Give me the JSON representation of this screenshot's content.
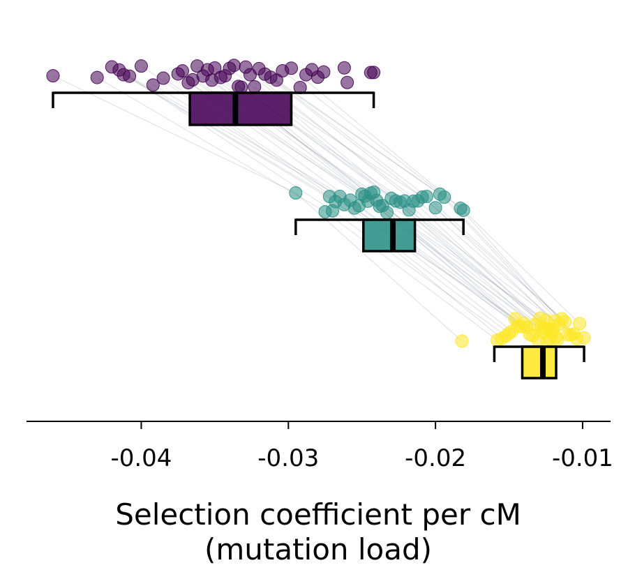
{
  "chart_data": {
    "type": "box-with-points",
    "title": "",
    "xlabel": "Selection coefficient per cM",
    "xlabel_line2": "(mutation load)",
    "xlim": [
      -0.0478,
      -0.0081
    ],
    "xticks": [
      -0.04,
      -0.03,
      -0.02,
      -0.01
    ],
    "xtick_labels": [
      "-0.04",
      "-0.03",
      "-0.02",
      "-0.01"
    ],
    "grid": false,
    "legend": "none",
    "paired_lines": true,
    "groups": [
      {
        "color": "#440154",
        "box": {
          "whisker_low": -0.046,
          "q1": -0.0367,
          "median": -0.0336,
          "q3": -0.0298,
          "whisker_high": -0.0242
        },
        "points": [
          -0.046,
          -0.043,
          -0.042,
          -0.0415,
          -0.0412,
          -0.0408,
          -0.04,
          -0.0392,
          -0.0385,
          -0.0375,
          -0.0372,
          -0.0368,
          -0.0365,
          -0.0362,
          -0.0358,
          -0.0355,
          -0.0352,
          -0.035,
          -0.0346,
          -0.0343,
          -0.034,
          -0.0337,
          -0.0334,
          -0.0332,
          -0.0329,
          -0.0326,
          -0.0323,
          -0.032,
          -0.0316,
          -0.0312,
          -0.0308,
          -0.0304,
          -0.0298,
          -0.0292,
          -0.0288,
          -0.0284,
          -0.028,
          -0.0276,
          -0.0262,
          -0.026,
          -0.0244,
          -0.0242
        ]
      },
      {
        "color": "#2a9085",
        "box": {
          "whisker_low": -0.0295,
          "q1": -0.0249,
          "median": -0.0229,
          "q3": -0.0214,
          "whisker_high": -0.0181
        },
        "points": [
          -0.0295,
          -0.0275,
          -0.0272,
          -0.027,
          -0.0268,
          -0.0265,
          -0.0262,
          -0.0258,
          -0.0255,
          -0.0252,
          -0.025,
          -0.0248,
          -0.0246,
          -0.0244,
          -0.0242,
          -0.024,
          -0.0238,
          -0.0236,
          -0.0233,
          -0.023,
          -0.0227,
          -0.0224,
          -0.0221,
          -0.0218,
          -0.0215,
          -0.0212,
          -0.0209,
          -0.0206,
          -0.02,
          -0.0197,
          -0.0194,
          -0.0183,
          -0.0181
        ]
      },
      {
        "color": "#fde725",
        "box": {
          "whisker_low": -0.016,
          "q1": -0.0141,
          "median": -0.0127,
          "q3": -0.0118,
          "whisker_high": -0.0099
        },
        "points": [
          -0.0182,
          -0.0158,
          -0.0155,
          -0.0152,
          -0.015,
          -0.0148,
          -0.0146,
          -0.0144,
          -0.0142,
          -0.014,
          -0.0138,
          -0.0136,
          -0.0134,
          -0.0132,
          -0.013,
          -0.0129,
          -0.0128,
          -0.0127,
          -0.0126,
          -0.0125,
          -0.0124,
          -0.0123,
          -0.0122,
          -0.0121,
          -0.012,
          -0.0119,
          -0.0118,
          -0.0117,
          -0.0116,
          -0.0114,
          -0.0112,
          -0.011,
          -0.0108,
          -0.0106,
          -0.0104,
          -0.0102,
          -0.0099
        ]
      }
    ]
  }
}
